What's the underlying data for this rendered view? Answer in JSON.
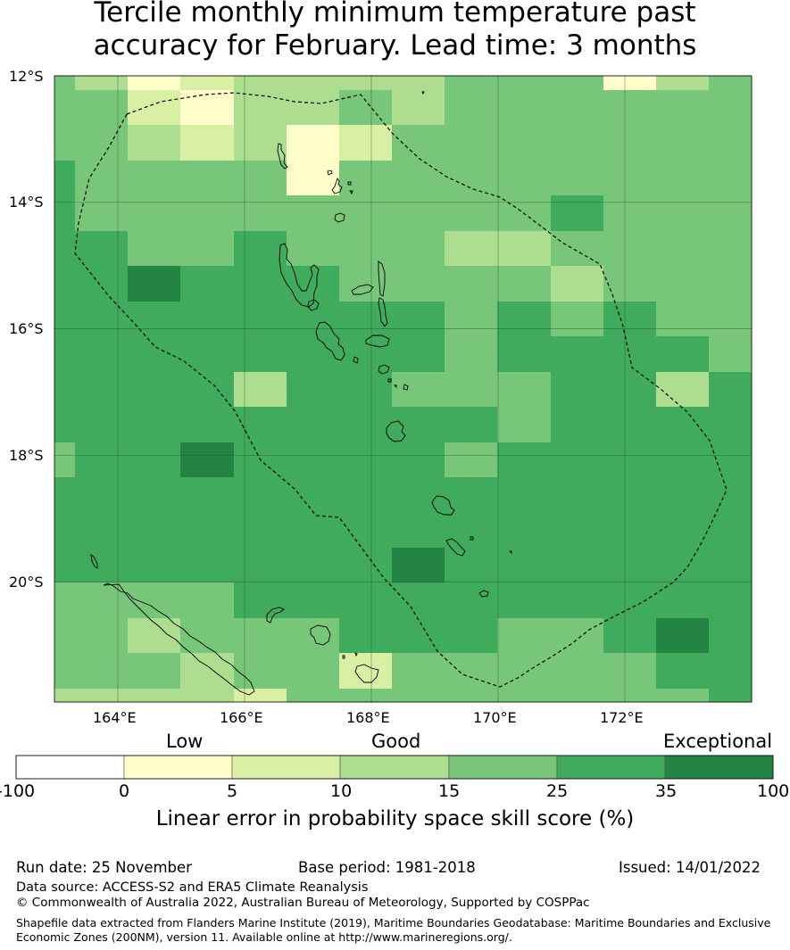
{
  "title": {
    "line1": "Tercile monthly minimum temperature past",
    "line2": "accuracy for February. Lead time: 3 months"
  },
  "map": {
    "lat_labels": [
      "12°S",
      "14°S",
      "16°S",
      "18°S",
      "20°S"
    ],
    "lon_labels": [
      "164°E",
      "166°E",
      "168°E",
      "170°E",
      "172°E"
    ],
    "lon_range": [
      163.0,
      174.0
    ],
    "lat_range": [
      -21.9,
      -12.0
    ],
    "grid_lons": [
      164,
      166,
      168,
      170,
      172
    ],
    "grid_lats": [
      -12,
      -14,
      -16,
      -18,
      -20
    ],
    "colors": {
      "c0": "#fefecb",
      "c1": "#d9efa3",
      "c2": "#addd8e",
      "c3": "#78c679",
      "c4": "#41ab5d",
      "c5": "#238443"
    }
  },
  "legend": {
    "low": "Low",
    "good": "Good",
    "exceptional": "Exceptional",
    "ticks": [
      "-100",
      "0",
      "5",
      "10",
      "15",
      "25",
      "35",
      "100"
    ],
    "colors": [
      "#ffffff",
      "#fefecb",
      "#d9efa3",
      "#addd8e",
      "#78c679",
      "#41ab5d",
      "#238443"
    ],
    "axis_label": "Linear error in probability space skill score (%)"
  },
  "footer": {
    "run_date": "Run date: 25 November",
    "base_period": "Base period: 1981-2018",
    "issued": "Issued: 14/01/2022",
    "data_source": "Data source: ACCESS-S2 and ERA5 Climate Reanalysis",
    "copyright": "© Commonwealth of Australia 2022, Australian Bureau of Meteorology, Supported by COSPPac",
    "shapefile1": "Shapefile data extracted from Flanders Marine Institute (2019), Maritime Boundaries Geodatabase: Maritime Boundaries and Exclusive",
    "shapefile2": "Economic Zones (200NM), version 11. Available online at http://www.marineregions.org/."
  }
}
